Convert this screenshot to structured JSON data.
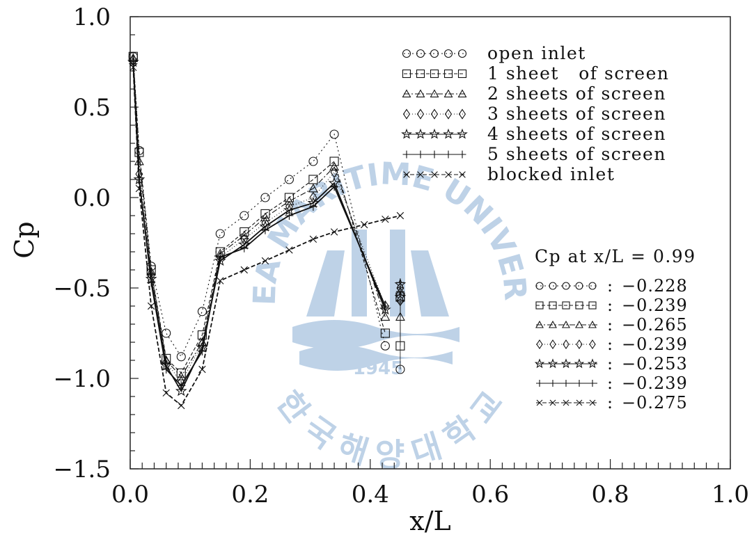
{
  "chart_data": {
    "type": "line",
    "xlabel": "x/L",
    "ylabel": "Cp",
    "xlim": [
      0.0,
      1.0
    ],
    "ylim": [
      -1.5,
      1.0
    ],
    "x_ticks": [
      "0.0",
      "0.2",
      "0.4",
      "0.6",
      "0.8",
      "1.0"
    ],
    "y_ticks": [
      "1.0",
      "0.5",
      "0.0",
      "-0.5",
      "-1.0",
      "-1.5"
    ],
    "grid": false,
    "legend_position": "top-right",
    "series": [
      {
        "name": "open inlet",
        "marker": "circle",
        "dash": "2,4",
        "x": [
          0.005,
          0.015,
          0.035,
          0.06,
          0.085,
          0.12,
          0.15,
          0.19,
          0.225,
          0.265,
          0.305,
          0.34,
          0.425
        ],
        "y": [
          0.78,
          0.26,
          -0.38,
          -0.75,
          -0.88,
          -0.63,
          -0.2,
          -0.1,
          0.0,
          0.1,
          0.2,
          0.35,
          -0.82
        ],
        "end_x": 0.45,
        "end_y": [
          -0.56,
          -0.95
        ]
      },
      {
        "name": "1 sheet   of screen",
        "marker": "square",
        "dash": "5,3",
        "x": [
          0.005,
          0.015,
          0.035,
          0.06,
          0.085,
          0.12,
          0.15,
          0.19,
          0.225,
          0.265,
          0.305,
          0.34,
          0.425
        ],
        "y": [
          0.78,
          0.25,
          -0.4,
          -0.89,
          -0.97,
          -0.76,
          -0.3,
          -0.19,
          -0.09,
          0.0,
          0.1,
          0.2,
          -0.75
        ],
        "end_x": 0.45,
        "end_y": [
          -0.55,
          -0.82
        ]
      },
      {
        "name": "2 sheets of screen",
        "marker": "triangle",
        "dash": "8,3,2,3",
        "x": [
          0.005,
          0.015,
          0.035,
          0.06,
          0.085,
          0.12,
          0.15,
          0.19,
          0.225,
          0.265,
          0.305,
          0.34,
          0.425
        ],
        "y": [
          0.77,
          0.2,
          -0.41,
          -0.9,
          -0.99,
          -0.8,
          -0.31,
          -0.21,
          -0.11,
          -0.02,
          0.05,
          0.17,
          -0.66
        ],
        "end_x": 0.45,
        "end_y": [
          -0.52,
          -0.66
        ]
      },
      {
        "name": "3 sheets of screen",
        "marker": "diamond",
        "dash": "1,3",
        "x": [
          0.005,
          0.015,
          0.035,
          0.06,
          0.085,
          0.12,
          0.15,
          0.19,
          0.225,
          0.265,
          0.305,
          0.34,
          0.425
        ],
        "y": [
          0.76,
          0.13,
          -0.43,
          -0.91,
          -1.02,
          -0.81,
          -0.33,
          -0.23,
          -0.14,
          -0.05,
          0.0,
          0.14,
          -0.6
        ],
        "end_x": 0.45,
        "end_y": [
          -0.5,
          -0.57
        ]
      },
      {
        "name": "4 sheets of screen",
        "marker": "star",
        "dash": "",
        "x": [
          0.005,
          0.015,
          0.035,
          0.06,
          0.085,
          0.12,
          0.15,
          0.19,
          0.225,
          0.265,
          0.305,
          0.34,
          0.425
        ],
        "y": [
          0.75,
          0.1,
          -0.45,
          -0.93,
          -1.07,
          -0.83,
          -0.35,
          -0.26,
          -0.16,
          -0.07,
          -0.03,
          0.08,
          -0.62
        ],
        "end_x": 0.45,
        "end_y": [
          -0.48,
          -0.55
        ]
      },
      {
        "name": "5 sheets of screen",
        "marker": "plus",
        "dash": "",
        "x": [
          0.005,
          0.015,
          0.035,
          0.06,
          0.085,
          0.12,
          0.15,
          0.19,
          0.225,
          0.265,
          0.305,
          0.34,
          0.425
        ],
        "y": [
          0.74,
          0.1,
          -0.47,
          -0.95,
          -1.04,
          -0.85,
          -0.33,
          -0.28,
          -0.18,
          -0.1,
          -0.05,
          0.06,
          -0.6
        ],
        "end_x": 0.45,
        "end_y": [
          -0.47,
          -0.52
        ]
      },
      {
        "name": "blocked inlet",
        "marker": "cross",
        "dash": "6,3",
        "x": [
          0.005,
          0.015,
          0.035,
          0.06,
          0.085,
          0.12,
          0.15,
          0.19,
          0.225,
          0.265,
          0.305,
          0.34,
          0.39,
          0.425,
          0.45
        ],
        "y": [
          0.72,
          0.05,
          -0.6,
          -1.08,
          -1.15,
          -0.95,
          -0.46,
          -0.4,
          -0.35,
          -0.29,
          -0.23,
          -0.19,
          -0.15,
          -0.12,
          -0.1
        ],
        "end_x": null,
        "end_y": []
      }
    ],
    "annotation": {
      "title": "Cp at x/L = 0.99",
      "values": [
        "-0.228",
        "-0.239",
        "-0.265",
        "-0.239",
        "-0.253",
        "-0.239",
        "-0.275"
      ]
    },
    "watermark": {
      "arc_text": "KOREA MARITIME UNIVERSITY",
      "year": "1945",
      "korean": "한국해양대학교"
    }
  }
}
